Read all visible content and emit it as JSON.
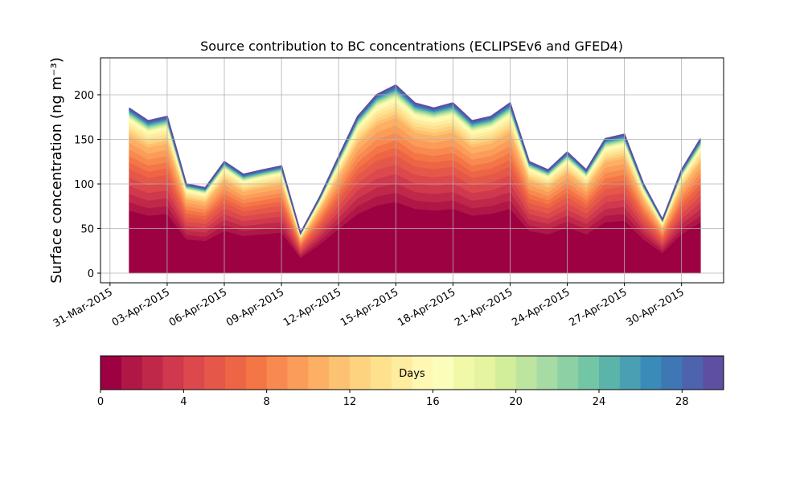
{
  "chart_data": {
    "type": "stacked-area",
    "title": "Source contribution to BC concentrations (ECLIPSEv6 and GFED4)",
    "y_label": "Surface concentration (ng m⁻³)",
    "x": [
      "2015-04-01",
      "2015-04-02",
      "2015-04-03",
      "2015-04-04",
      "2015-04-05",
      "2015-04-06",
      "2015-04-07",
      "2015-04-08",
      "2015-04-09",
      "2015-04-10",
      "2015-04-11",
      "2015-04-12",
      "2015-04-13",
      "2015-04-14",
      "2015-04-15",
      "2015-04-16",
      "2015-04-17",
      "2015-04-18",
      "2015-04-19",
      "2015-04-20",
      "2015-04-21",
      "2015-04-22",
      "2015-04-23",
      "2015-04-24",
      "2015-04-25",
      "2015-04-26",
      "2015-04-27",
      "2015-04-28",
      "2015-04-29",
      "2015-04-30",
      "2015-05-01"
    ],
    "xlim": [
      "2015-03-30T12:00Z",
      "2015-05-02T05:00Z"
    ],
    "xticks": [
      {
        "value": "2015-03-31",
        "label": "31-Mar-2015"
      },
      {
        "value": "2015-04-03",
        "label": "03-Apr-2015"
      },
      {
        "value": "2015-04-06",
        "label": "06-Apr-2015"
      },
      {
        "value": "2015-04-09",
        "label": "09-Apr-2015"
      },
      {
        "value": "2015-04-12",
        "label": "12-Apr-2015"
      },
      {
        "value": "2015-04-15",
        "label": "15-Apr-2015"
      },
      {
        "value": "2015-04-18",
        "label": "18-Apr-2015"
      },
      {
        "value": "2015-04-21",
        "label": "21-Apr-2015"
      },
      {
        "value": "2015-04-24",
        "label": "24-Apr-2015"
      },
      {
        "value": "2015-04-27",
        "label": "27-Apr-2015"
      },
      {
        "value": "2015-04-30",
        "label": "30-Apr-2015"
      }
    ],
    "ylim": [
      -10.8,
      241.4
    ],
    "yticks": [
      0,
      50,
      100,
      150,
      200
    ],
    "grid": true,
    "colorbar": {
      "label": "Days",
      "lim": [
        0,
        30
      ],
      "ticks": [
        0,
        4,
        8,
        12,
        16,
        20,
        24,
        28
      ]
    },
    "series": [
      {
        "color": "#9e0142",
        "values": [
          70.3,
          64.6,
          66.5,
          38,
          36.1,
          47.5,
          41.8,
          43.7,
          45.6,
          17.1,
          32.3,
          49.4,
          66.5,
          76,
          79.8,
          72.2,
          70.3,
          72.2,
          64.6,
          66.5,
          72.2,
          47.5,
          43.7,
          51.3,
          43.7,
          57,
          58.9,
          38,
          22.8,
          43.7,
          57
        ]
      },
      {
        "color": "#b01646",
        "values": [
          9.3,
          8.5,
          8.8,
          5,
          4.8,
          6.3,
          5.5,
          5.8,
          6,
          2.3,
          4.3,
          6.5,
          8.8,
          10,
          10.5,
          9.5,
          9.3,
          9.5,
          8.5,
          8.8,
          9.5,
          6.3,
          5.8,
          6.8,
          5.8,
          7.5,
          7.8,
          5,
          3,
          5.8,
          7.5
        ]
      },
      {
        "color": "#c0284a",
        "values": [
          9.3,
          8.5,
          8.8,
          5,
          4.8,
          6.3,
          5.5,
          5.8,
          6,
          2.3,
          4.3,
          6.5,
          8.8,
          10,
          10.5,
          9.5,
          9.3,
          9.5,
          8.5,
          8.8,
          9.5,
          6.3,
          5.8,
          6.8,
          5.8,
          7.5,
          7.8,
          5,
          3,
          5.8,
          7.5
        ]
      },
      {
        "color": "#d0384d",
        "values": [
          9.3,
          8.5,
          8.8,
          5,
          4.8,
          6.3,
          5.5,
          5.8,
          6,
          2.3,
          4.3,
          6.5,
          8.8,
          10,
          10.5,
          9.5,
          9.3,
          9.5,
          8.5,
          8.8,
          9.5,
          6.3,
          5.8,
          6.8,
          5.8,
          7.5,
          7.8,
          5,
          3,
          5.8,
          7.5
        ]
      },
      {
        "color": "#dc484c",
        "values": [
          9.3,
          8.5,
          8.8,
          5,
          4.8,
          6.3,
          5.5,
          5.8,
          6,
          2.3,
          4.3,
          6.5,
          8.8,
          10,
          10.5,
          9.5,
          9.3,
          9.5,
          8.5,
          8.8,
          9.5,
          6.3,
          5.8,
          6.8,
          5.8,
          7.5,
          7.8,
          5,
          3,
          5.8,
          7.5
        ]
      },
      {
        "color": "#e55749",
        "values": [
          9.3,
          8.5,
          8.8,
          5,
          4.8,
          6.3,
          5.5,
          5.8,
          6,
          2.3,
          4.3,
          6.5,
          8.8,
          10,
          10.5,
          9.5,
          9.3,
          9.5,
          8.5,
          8.8,
          9.5,
          6.3,
          5.8,
          6.8,
          5.8,
          7.5,
          7.8,
          5,
          3,
          5.8,
          7.5
        ]
      },
      {
        "color": "#ee6545",
        "values": [
          7.4,
          6.8,
          7,
          4,
          3.8,
          5,
          4.4,
          4.6,
          4.8,
          1.8,
          3.4,
          5.2,
          7,
          8,
          8.4,
          7.6,
          7.4,
          7.6,
          6.8,
          7,
          7.6,
          5,
          4.6,
          5.4,
          4.6,
          6,
          6.2,
          4,
          2.4,
          4.6,
          6
        ]
      },
      {
        "color": "#f47545",
        "values": [
          7.4,
          6.8,
          7,
          4,
          3.8,
          5,
          4.4,
          4.6,
          4.8,
          1.8,
          3.4,
          5.2,
          7,
          8,
          8.4,
          7.6,
          7.4,
          7.6,
          6.8,
          7,
          7.6,
          5,
          4.6,
          5.4,
          4.6,
          6,
          6.2,
          4,
          2.4,
          4.6,
          6
        ]
      },
      {
        "color": "#f88a51",
        "values": [
          7.4,
          6.8,
          7,
          4,
          3.8,
          5,
          4.4,
          4.6,
          4.8,
          1.8,
          3.4,
          5.2,
          7,
          8,
          8.4,
          7.6,
          7.4,
          7.6,
          6.8,
          7,
          7.6,
          5,
          4.6,
          5.4,
          4.6,
          6,
          6.2,
          4,
          2.4,
          4.6,
          6
        ]
      },
      {
        "color": "#fb9d59",
        "values": [
          7.4,
          6.8,
          7,
          4,
          3.8,
          5,
          4.4,
          4.6,
          4.8,
          1.8,
          3.4,
          5.2,
          7,
          8,
          8.4,
          7.6,
          7.4,
          7.6,
          6.8,
          7,
          7.6,
          5,
          4.6,
          5.4,
          4.6,
          6,
          6.2,
          4,
          2.4,
          4.6,
          6
        ]
      },
      {
        "color": "#fdb063",
        "values": [
          7.4,
          6.8,
          7,
          4,
          3.8,
          5,
          4.4,
          4.6,
          4.8,
          1.8,
          3.4,
          5.2,
          7,
          8,
          8.4,
          7.6,
          7.4,
          7.6,
          6.8,
          7,
          7.6,
          5,
          4.6,
          5.4,
          4.6,
          6,
          6.2,
          4,
          2.4,
          4.6,
          6
        ]
      },
      {
        "color": "#fdc271",
        "values": [
          3.7,
          3.4,
          3.5,
          2,
          1.9,
          2.5,
          2.2,
          2.3,
          2.4,
          0.9,
          1.7,
          2.6,
          3.5,
          4,
          4.2,
          3.8,
          3.7,
          3.8,
          3.4,
          3.5,
          3.8,
          2.5,
          2.3,
          2.7,
          2.3,
          3,
          3.1,
          2,
          1.2,
          2.3,
          3
        ]
      },
      {
        "color": "#fed380",
        "values": [
          3.7,
          3.4,
          3.5,
          2,
          1.9,
          2.5,
          2.2,
          2.3,
          2.4,
          0.9,
          1.7,
          2.6,
          3.5,
          4,
          4.2,
          3.8,
          3.7,
          3.8,
          3.4,
          3.5,
          3.8,
          2.5,
          2.3,
          2.7,
          2.3,
          3,
          3.1,
          2,
          1.2,
          2.3,
          3
        ]
      },
      {
        "color": "#fee18d",
        "values": [
          3.7,
          3.4,
          3.5,
          2,
          1.9,
          2.5,
          2.2,
          2.3,
          2.4,
          0.9,
          1.7,
          2.6,
          3.5,
          4,
          4.2,
          3.8,
          3.7,
          3.8,
          3.4,
          3.5,
          3.8,
          2.5,
          2.3,
          2.7,
          2.3,
          3,
          3.1,
          2,
          1.2,
          2.3,
          3
        ]
      },
      {
        "color": "#feec9f",
        "values": [
          3.7,
          3.4,
          3.5,
          2,
          1.9,
          2.5,
          2.2,
          2.3,
          2.4,
          0.9,
          1.7,
          2.6,
          3.5,
          4,
          4.2,
          3.8,
          3.7,
          3.8,
          3.4,
          3.5,
          3.8,
          2.5,
          2.3,
          2.7,
          2.3,
          3,
          3.1,
          2,
          1.2,
          2.3,
          3
        ]
      },
      {
        "color": "#fff8b2",
        "values": [
          3.7,
          3.4,
          3.5,
          2,
          1.9,
          2.5,
          2.2,
          2.3,
          2.4,
          0.9,
          1.7,
          2.6,
          3.5,
          4,
          4.2,
          3.8,
          3.7,
          3.8,
          3.4,
          3.5,
          3.8,
          2.5,
          2.3,
          2.7,
          2.3,
          3,
          3.1,
          2,
          1.2,
          2.3,
          3
        ]
      },
      {
        "color": "#fbfdba",
        "values": [
          0.9,
          0.9,
          0.9,
          0.5,
          0.5,
          0.6,
          0.6,
          0.6,
          0.6,
          0.2,
          0.4,
          0.7,
          0.9,
          1,
          1.1,
          1,
          0.9,
          1,
          0.9,
          0.9,
          1,
          0.6,
          0.6,
          0.7,
          0.6,
          0.8,
          0.8,
          0.5,
          0.3,
          0.6,
          0.8
        ]
      },
      {
        "color": "#f1f9a9",
        "values": [
          0.9,
          0.9,
          0.9,
          0.5,
          0.5,
          0.6,
          0.6,
          0.6,
          0.6,
          0.2,
          0.4,
          0.7,
          0.9,
          1,
          1.1,
          1,
          0.9,
          1,
          0.9,
          0.9,
          1,
          0.6,
          0.6,
          0.7,
          0.6,
          0.8,
          0.8,
          0.5,
          0.3,
          0.6,
          0.8
        ]
      },
      {
        "color": "#e5f49f",
        "values": [
          0.9,
          0.9,
          0.9,
          0.5,
          0.5,
          0.6,
          0.6,
          0.6,
          0.6,
          0.2,
          0.4,
          0.7,
          0.9,
          1,
          1.1,
          1,
          0.9,
          1,
          0.9,
          0.9,
          1,
          0.6,
          0.6,
          0.7,
          0.6,
          0.8,
          0.8,
          0.5,
          0.3,
          0.6,
          0.8
        ]
      },
      {
        "color": "#d3ee9b",
        "values": [
          0.9,
          0.9,
          0.9,
          0.5,
          0.5,
          0.6,
          0.6,
          0.6,
          0.6,
          0.2,
          0.4,
          0.7,
          0.9,
          1,
          1.1,
          1,
          0.9,
          1,
          0.9,
          0.9,
          1,
          0.6,
          0.6,
          0.7,
          0.6,
          0.8,
          0.8,
          0.5,
          0.3,
          0.6,
          0.8
        ]
      },
      {
        "color": "#bee5a0",
        "values": [
          0.9,
          0.9,
          0.9,
          0.5,
          0.5,
          0.6,
          0.6,
          0.6,
          0.6,
          0.2,
          0.4,
          0.7,
          0.9,
          1,
          1.1,
          1,
          0.9,
          1,
          0.9,
          0.9,
          1,
          0.6,
          0.6,
          0.7,
          0.6,
          0.8,
          0.8,
          0.5,
          0.3,
          0.6,
          0.8
        ]
      },
      {
        "color": "#a6dba4",
        "values": [
          0.9,
          0.9,
          0.9,
          0.5,
          0.5,
          0.6,
          0.6,
          0.6,
          0.6,
          0.2,
          0.4,
          0.7,
          0.9,
          1,
          1.1,
          1,
          0.9,
          1,
          0.9,
          0.9,
          1,
          0.6,
          0.6,
          0.7,
          0.6,
          0.8,
          0.8,
          0.5,
          0.3,
          0.6,
          0.8
        ]
      },
      {
        "color": "#8cd0a4",
        "values": [
          0.9,
          0.9,
          0.9,
          0.5,
          0.5,
          0.6,
          0.6,
          0.6,
          0.6,
          0.2,
          0.4,
          0.7,
          0.9,
          1,
          1.1,
          1,
          0.9,
          1,
          0.9,
          0.9,
          1,
          0.6,
          0.6,
          0.7,
          0.6,
          0.8,
          0.8,
          0.5,
          0.3,
          0.6,
          0.8
        ]
      },
      {
        "color": "#72c5a5",
        "values": [
          0.9,
          0.9,
          0.9,
          0.5,
          0.5,
          0.6,
          0.6,
          0.6,
          0.6,
          0.2,
          0.4,
          0.7,
          0.9,
          1,
          1.1,
          1,
          0.9,
          1,
          0.9,
          0.9,
          1,
          0.6,
          0.6,
          0.7,
          0.6,
          0.8,
          0.8,
          0.5,
          0.3,
          0.6,
          0.8
        ]
      },
      {
        "color": "#5cb3aa",
        "values": [
          0.9,
          0.9,
          0.9,
          0.5,
          0.5,
          0.6,
          0.6,
          0.6,
          0.6,
          0.2,
          0.4,
          0.7,
          0.9,
          1,
          1.1,
          1,
          0.9,
          1,
          0.9,
          0.9,
          1,
          0.6,
          0.6,
          0.7,
          0.6,
          0.8,
          0.8,
          0.5,
          0.3,
          0.6,
          0.8
        ]
      },
      {
        "color": "#4aa0b2",
        "values": [
          0.9,
          0.9,
          0.9,
          0.5,
          0.5,
          0.6,
          0.6,
          0.6,
          0.6,
          0.2,
          0.4,
          0.7,
          0.9,
          1,
          1.1,
          1,
          0.9,
          1,
          0.9,
          0.9,
          1,
          0.6,
          0.6,
          0.7,
          0.6,
          0.8,
          0.8,
          0.5,
          0.3,
          0.6,
          0.8
        ]
      },
      {
        "color": "#3a8bb8",
        "values": [
          0.9,
          0.9,
          0.9,
          0.5,
          0.5,
          0.6,
          0.6,
          0.6,
          0.6,
          0.2,
          0.4,
          0.7,
          0.9,
          1,
          1.1,
          1,
          0.9,
          1,
          0.9,
          0.9,
          1,
          0.6,
          0.6,
          0.7,
          0.6,
          0.8,
          0.8,
          0.5,
          0.3,
          0.6,
          0.8
        ]
      },
      {
        "color": "#3e77b3",
        "values": [
          0.9,
          0.9,
          0.9,
          0.5,
          0.5,
          0.6,
          0.6,
          0.6,
          0.6,
          0.2,
          0.4,
          0.7,
          0.9,
          1,
          1.1,
          1,
          0.9,
          1,
          0.9,
          0.9,
          1,
          0.6,
          0.6,
          0.7,
          0.6,
          0.8,
          0.8,
          0.5,
          0.3,
          0.6,
          0.8
        ]
      },
      {
        "color": "#4e63ad",
        "values": [
          0.9,
          0.9,
          0.9,
          0.5,
          0.5,
          0.6,
          0.6,
          0.6,
          0.6,
          0.2,
          0.4,
          0.7,
          0.9,
          1,
          1.1,
          1,
          0.9,
          1,
          0.9,
          0.9,
          1,
          0.6,
          0.6,
          0.7,
          0.6,
          0.8,
          0.8,
          0.5,
          0.3,
          0.6,
          0.8
        ]
      },
      {
        "color": "#5e4fa2",
        "values": [
          0.9,
          0.9,
          0.9,
          0.5,
          0.5,
          0.6,
          0.6,
          0.6,
          0.6,
          0.2,
          0.4,
          0.7,
          0.9,
          1,
          1.1,
          1,
          0.9,
          1,
          0.9,
          0.9,
          1,
          0.6,
          0.6,
          0.7,
          0.6,
          0.8,
          0.8,
          0.5,
          0.3,
          0.6,
          0.8
        ]
      }
    ]
  }
}
